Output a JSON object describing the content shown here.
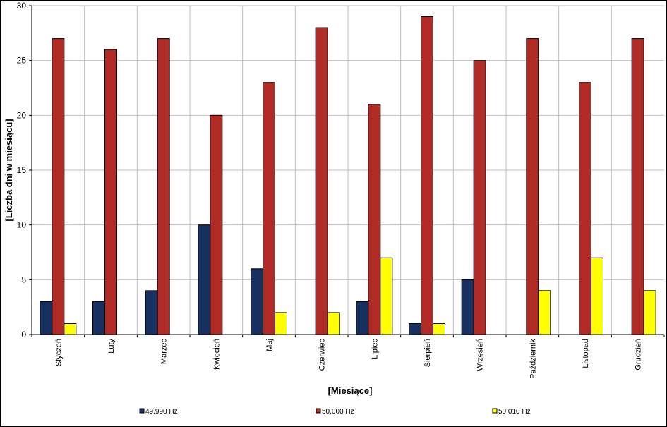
{
  "chart_data": {
    "type": "bar",
    "title": "",
    "xlabel": "[Miesiące]",
    "ylabel": "[Liczba dni w miesiącu]",
    "ylim": [
      0,
      30
    ],
    "yticks": [
      0,
      5,
      10,
      15,
      20,
      25,
      30
    ],
    "grid": true,
    "legend_position": "bottom",
    "categories": [
      "Styczeń",
      "Luty",
      "Marzec",
      "Kwiecień",
      "Maj",
      "Czerwiec",
      "Lipiec",
      "Sierpień",
      "Wrzesień",
      "Październik",
      "Listopad",
      "Grudzień"
    ],
    "series": [
      {
        "name": "49,990 Hz",
        "color": "#17305f",
        "values": [
          3,
          3,
          4,
          10,
          6,
          0,
          3,
          1,
          5,
          0,
          0,
          0
        ]
      },
      {
        "name": "50,000 Hz",
        "color": "#b02a26",
        "values": [
          27,
          26,
          27,
          20,
          23,
          28,
          21,
          29,
          25,
          27,
          23,
          27
        ]
      },
      {
        "name": "50,010 Hz",
        "color": "#ffff00",
        "values": [
          1,
          0,
          0,
          0,
          2,
          2,
          7,
          1,
          0,
          4,
          7,
          4
        ]
      }
    ]
  }
}
